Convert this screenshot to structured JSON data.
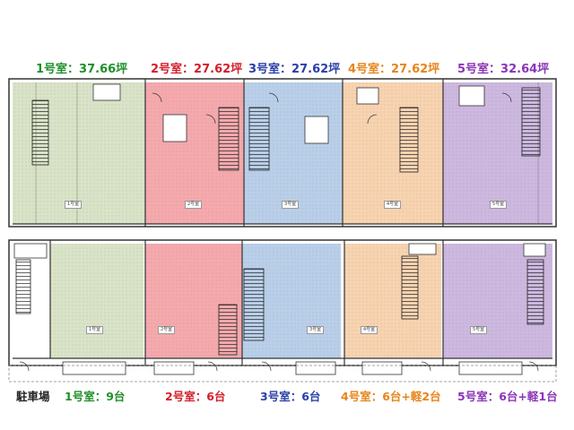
{
  "header": {
    "units": [
      {
        "label": "1号室：37.66坪",
        "color": "#1f8f2a"
      },
      {
        "label": "2号室：27.62坪",
        "color": "#d41e2a"
      },
      {
        "label": "3号室：27.62坪",
        "color": "#2b3fa8"
      },
      {
        "label": "4号室：27.62坪",
        "color": "#e8841a"
      },
      {
        "label": "5号室：32.64坪",
        "color": "#8a35b8"
      }
    ]
  },
  "footer": {
    "parking_title": "駐車場",
    "units": [
      {
        "label": "1号室：9台",
        "color": "#1f8f2a"
      },
      {
        "label": "2号室：6台",
        "color": "#d41e2a"
      },
      {
        "label": "3号室：6台",
        "color": "#2b3fa8"
      },
      {
        "label": "4号室：6台+軽2台",
        "color": "#e8841a"
      },
      {
        "label": "5号室：6台+軽1台",
        "color": "#8a35b8"
      }
    ]
  },
  "plan": {
    "room_labels": [
      "1号室",
      "2号室",
      "3号室",
      "4号室",
      "5号室"
    ],
    "fills": {
      "unit1": "#d9e3c7",
      "unit2": "#f5a9ad",
      "unit3": "#b9cfe9",
      "unit4": "#f8d3b0",
      "unit5": "#cdb8e0"
    }
  }
}
